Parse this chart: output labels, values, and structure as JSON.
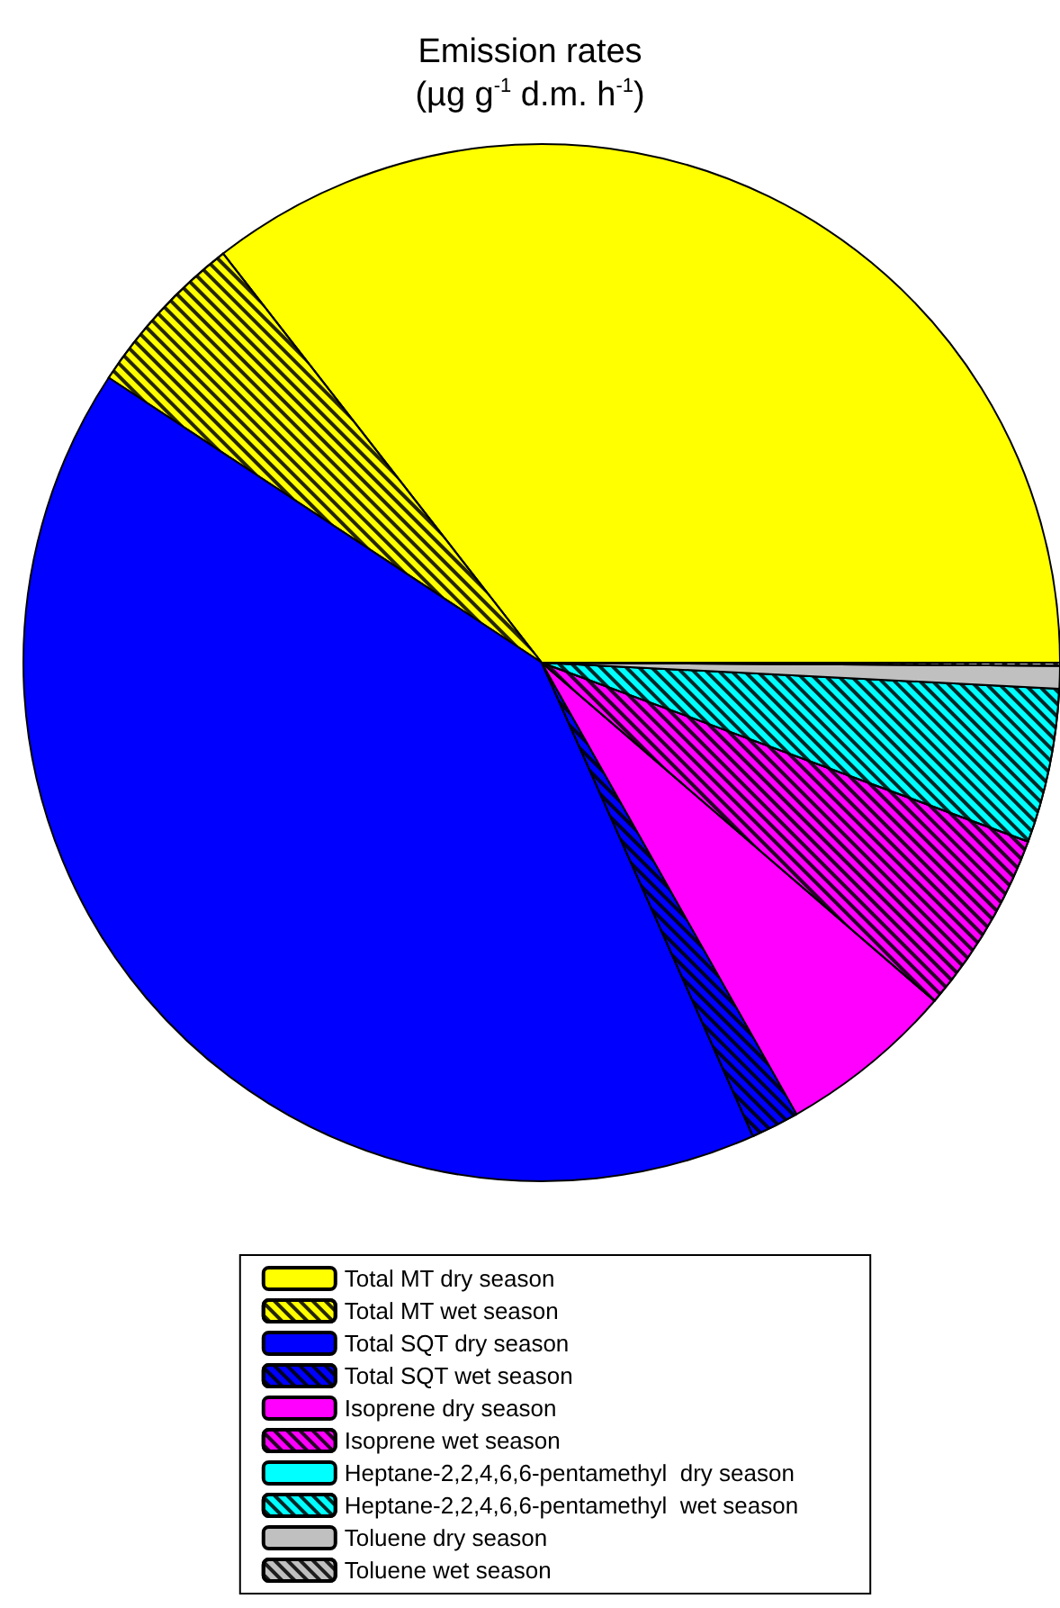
{
  "chart_data": {
    "type": "pie",
    "title": "Emission rates\n(µg g$^{-1}$ d.m. h$^{-1}$)",
    "categories": [
      "Total MT dry season",
      "Total MT wet season",
      "Total SQT dry season",
      "Total SQT wet season",
      "Isoprene dry season",
      "Isoprene wet season",
      "Heptane-2,2,4,6,6-pentamethyl  dry season",
      "Heptane-2,2,4,6,6-pentamethyl  wet season",
      "Toluene dry season",
      "Toluene wet season"
    ],
    "values": [
      35.5,
      5.2,
      40.9,
      1.5,
      5.5,
      5.7,
      null,
      4.8,
      0.7,
      0.1
    ],
    "colors": [
      "#ffff00",
      "#ffff00",
      "#0000ff",
      "#0000ff",
      "#ff00ff",
      "#ff00ff",
      "#00ffff",
      "#00ffff",
      "#c0c0c0",
      "#c0c0c0"
    ],
    "legend": "bottom"
  }
}
